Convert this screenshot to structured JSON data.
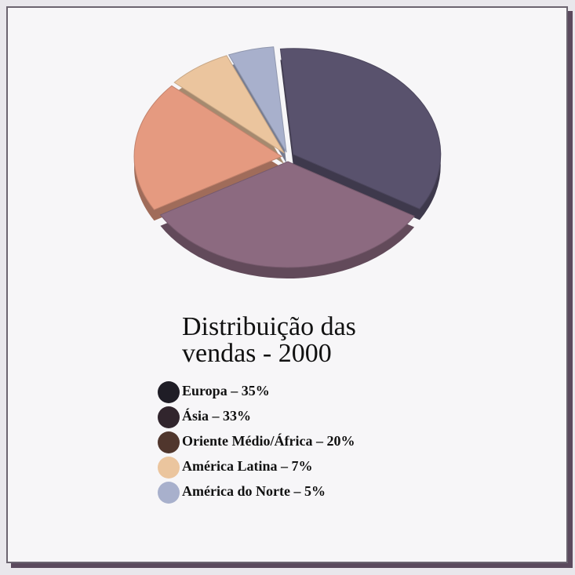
{
  "chart_data": {
    "type": "pie",
    "title": "Distribuição das vendas - 2000",
    "categories": [
      "Europa – 35%",
      "Ásia – 33%",
      "Oriente Médio/África – 20%",
      "América Latina – 7%",
      "América do Norte – 5%"
    ],
    "values": [
      35,
      33,
      20,
      7,
      5
    ],
    "colors": [
      "#59526d",
      "#8c6a80",
      "#e59a80",
      "#ebc59e",
      "#a8b0cc"
    ],
    "legend": "bottom"
  }
}
